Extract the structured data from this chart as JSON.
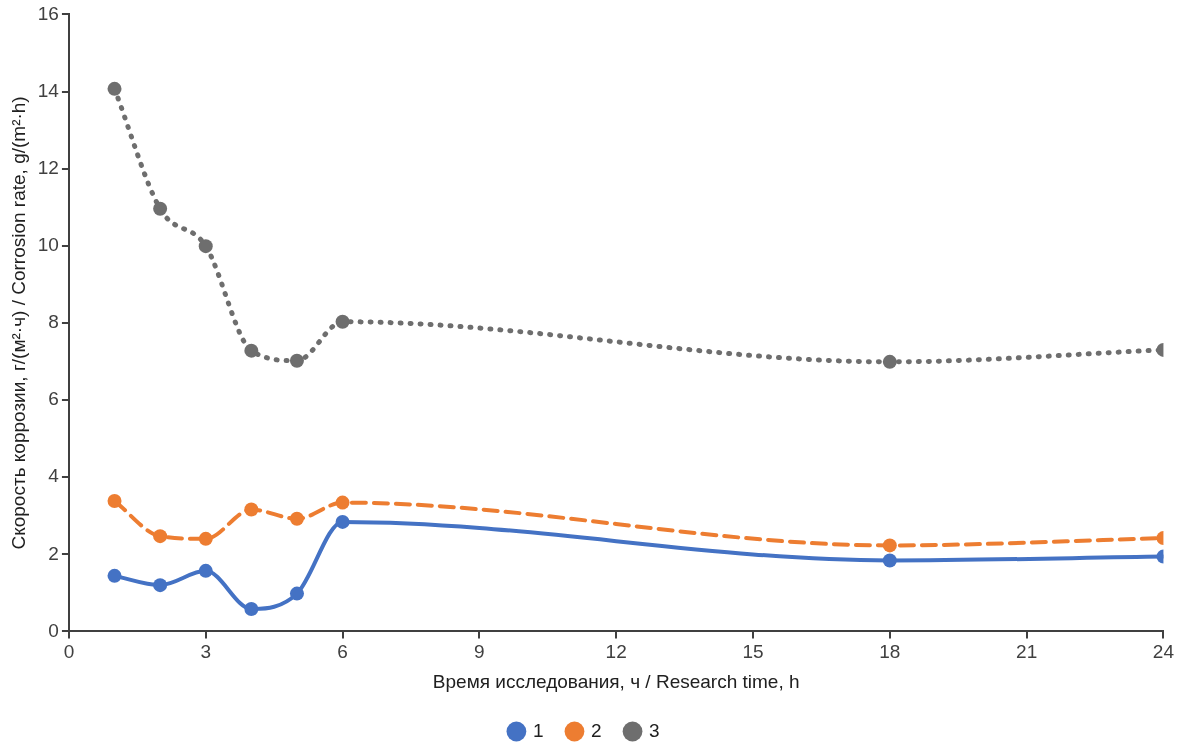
{
  "chart_data": {
    "type": "line",
    "xlabel": "Время исследования, ч / Research time, h",
    "ylabel": "Скорость коррозии, г/(м²·ч) / Corrosion rate, g/(m²·h)",
    "x": [
      1,
      2,
      3,
      4,
      5,
      6,
      18,
      24
    ],
    "series": [
      {
        "name": "1",
        "color": "#4472c4",
        "line_style": "solid",
        "values": [
          1.44,
          1.2,
          1.57,
          0.58,
          0.98,
          2.84,
          1.84,
          1.94
        ]
      },
      {
        "name": "2",
        "color": "#ed7d31",
        "line_style": "dashed",
        "values": [
          3.38,
          2.47,
          2.4,
          3.16,
          2.92,
          3.34,
          2.23,
          2.42
        ]
      },
      {
        "name": "3",
        "color": "#6e6e6e",
        "line_style": "dotted",
        "values": [
          14.07,
          10.96,
          9.99,
          7.28,
          7.02,
          8.03,
          6.99,
          7.3
        ]
      }
    ],
    "xlim": [
      0,
      24
    ],
    "xticks": [
      0,
      3,
      6,
      9,
      12,
      15,
      18,
      21,
      24
    ],
    "ylim": [
      0,
      16
    ],
    "yticks": [
      0,
      2,
      4,
      6,
      8,
      10,
      12,
      14,
      16
    ],
    "grid": false,
    "legend": "bottom",
    "marker": "circle"
  }
}
